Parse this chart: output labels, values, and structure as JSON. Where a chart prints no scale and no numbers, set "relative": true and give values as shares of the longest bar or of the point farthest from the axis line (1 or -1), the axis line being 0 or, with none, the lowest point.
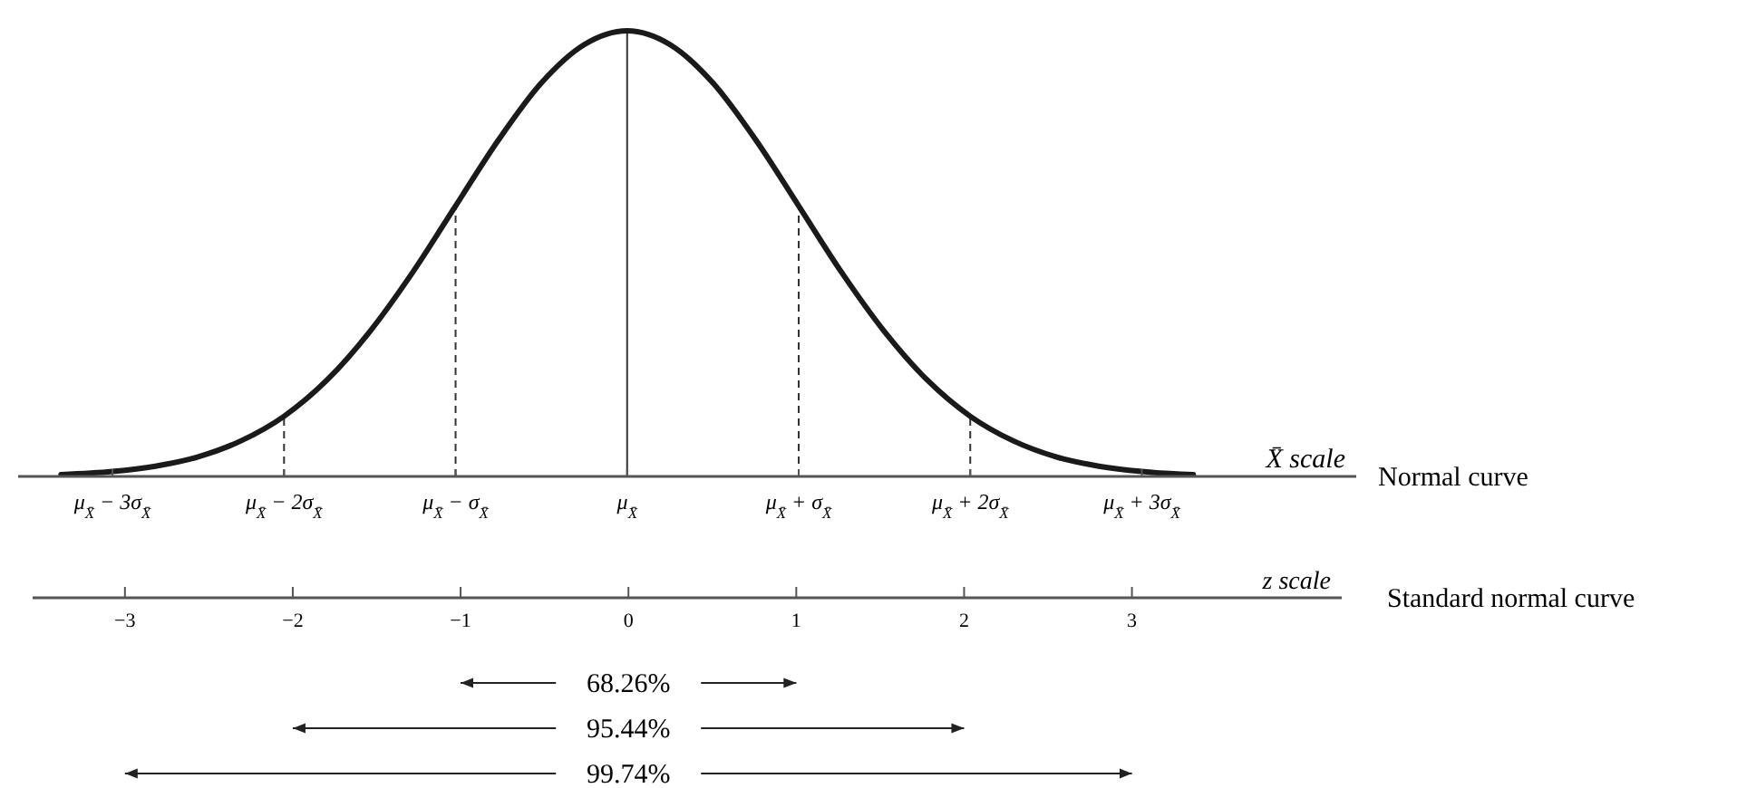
{
  "chart_data": {
    "type": "line",
    "relative": true,
    "x": [
      -3.3,
      -3,
      -2.75,
      -2.5,
      -2.25,
      -2,
      -1.75,
      -1.5,
      -1.25,
      -1,
      -0.75,
      -0.5,
      -0.25,
      0,
      0.25,
      0.5,
      0.75,
      1,
      1.25,
      1.5,
      1.75,
      2,
      2.25,
      2.5,
      2.75,
      3,
      3.3
    ],
    "series": [
      {
        "color": "#1a1a1a",
        "values": [
          0.004,
          0.011,
          0.023,
          0.044,
          0.08,
          0.135,
          0.216,
          0.325,
          0.458,
          0.607,
          0.755,
          0.883,
          0.969,
          1,
          0.969,
          0.883,
          0.755,
          0.607,
          0.458,
          0.325,
          0.216,
          0.135,
          0.08,
          0.044,
          0.023,
          0.011,
          0.004
        ]
      }
    ],
    "xlim": [
      -3.55,
      4.25
    ],
    "xticks": [
      {
        "value": -3,
        "label": "μ$_{X̄}$ − 3σ$_{X̄}$"
      },
      {
        "value": -2,
        "label": "μ$_{X̄}$ − 2σ$_{X̄}$"
      },
      {
        "value": -1,
        "label": "μ$_{X̄}$ − σ$_{X̄}$"
      },
      {
        "value": 0,
        "label": "μ$_{X̄}$"
      },
      {
        "value": 1,
        "label": "μ$_{X̄}$ + σ$_{X̄}$"
      },
      {
        "value": 2,
        "label": "μ$_{X̄}$ + 2σ$_{X̄}$"
      },
      {
        "value": 3,
        "label": "μ$_{X̄}$ + 3σ$_{X̄}$"
      }
    ],
    "xlabel": "X̄ scale",
    "x2lim": [
      -3.55,
      4.25
    ],
    "x2ticks": [
      {
        "value": -3,
        "label": "−3"
      },
      {
        "value": -2,
        "label": "−2"
      },
      {
        "value": -1,
        "label": "−1"
      },
      0,
      1,
      2,
      3
    ],
    "x2label": "z scale",
    "ref_lines": [
      {
        "axis": "x",
        "value": -2,
        "line_style": "dashed"
      },
      {
        "axis": "x",
        "value": -1,
        "line_style": "dashed"
      },
      {
        "axis": "x",
        "value": 0,
        "line_style": "solid"
      },
      {
        "axis": "x",
        "value": 1,
        "line_style": "dashed"
      },
      {
        "axis": "x",
        "value": 2,
        "line_style": "dashed"
      }
    ],
    "annotations": [
      "Normal curve",
      "Standard normal curve",
      "68.26%",
      "95.44%",
      "99.74%"
    ],
    "grid": false,
    "marker": "none",
    "line_style": "solid"
  }
}
